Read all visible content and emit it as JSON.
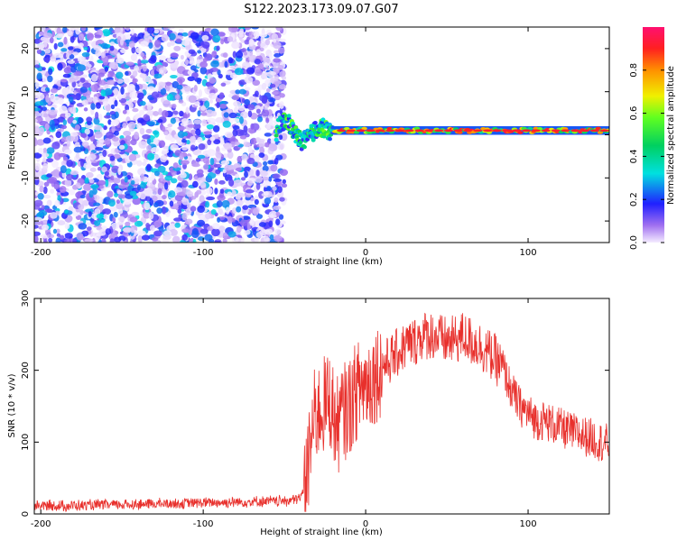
{
  "title": "S122.2023.173.09.07.G07",
  "chart_data": [
    {
      "type": "heatmap",
      "xlabel": "Height of straight line (km)",
      "ylabel": "Frequency (Hz)",
      "xlim": [
        -204,
        150
      ],
      "ylim": [
        -25,
        25
      ],
      "xticks": [
        -200,
        -100,
        0,
        100
      ],
      "yticks": [
        -20,
        -10,
        0,
        10,
        20
      ],
      "colorbar": {
        "label": "Normalized spectral amplitude",
        "range": [
          0,
          1
        ],
        "ticks": [
          "0.0",
          "0.2",
          "0.4",
          "0.6",
          "0.8"
        ]
      },
      "regions": [
        {
          "x_range": [
            -204,
            -55
          ],
          "y_range": [
            -25,
            25
          ],
          "description": "scattered low-amplitude noise (0.0-0.3)"
        },
        {
          "x_range": [
            -55,
            -20
          ],
          "y_range": [
            -5,
            6
          ],
          "description": "wavy transition signal"
        },
        {
          "x_range": [
            -20,
            150
          ],
          "y_range": [
            0,
            2
          ],
          "description": "narrow band centered near 1 Hz, amplitude up to 1.0"
        }
      ],
      "grid": false
    },
    {
      "type": "line",
      "xlabel": "Height of straight line (km)",
      "ylabel": "SNR (10 * v/v)",
      "xlim": [
        -204,
        150
      ],
      "ylim": [
        0,
        300
      ],
      "xticks": [
        -200,
        -100,
        0,
        100
      ],
      "yticks": [
        0,
        100,
        200,
        300
      ],
      "color": "#e8302c",
      "series": [
        {
          "x": [
            -204,
            -190,
            -170,
            -150,
            -130,
            -110,
            -90,
            -70,
            -50,
            -40,
            -36,
            -32,
            -30,
            -26,
            -22,
            -18,
            -14,
            -10,
            -6,
            -2,
            2,
            6,
            10,
            15,
            20,
            25,
            30,
            35,
            40,
            45,
            50,
            55,
            60,
            65,
            70,
            75,
            80,
            85,
            90,
            95,
            100,
            105,
            110,
            115,
            120,
            125,
            130,
            135,
            140,
            145,
            150
          ],
          "y": [
            12,
            11,
            12,
            13,
            14,
            15,
            16,
            17,
            18,
            22,
            55,
            130,
            140,
            150,
            160,
            120,
            140,
            150,
            170,
            180,
            185,
            195,
            205,
            215,
            225,
            235,
            240,
            248,
            250,
            245,
            240,
            242,
            248,
            240,
            235,
            225,
            215,
            200,
            170,
            150,
            140,
            130,
            130,
            125,
            120,
            115,
            112,
            108,
            105,
            100,
            98
          ]
        }
      ],
      "grid": false
    }
  ]
}
